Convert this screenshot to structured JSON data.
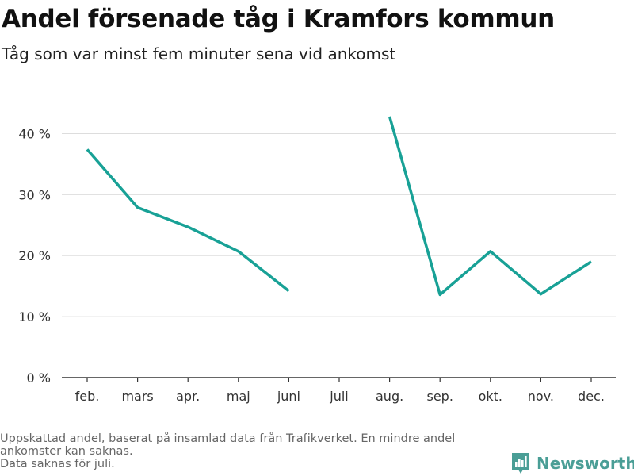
{
  "header": {
    "title": "Andel försenade tåg i Kramfors kommun",
    "subtitle": "Tåg som var minst fem minuter sena vid ankomst"
  },
  "footnote": {
    "lines": [
      "Uppskattad andel, baserat på insamlad data från Trafikverket. En mindre andel",
      "ankomster kan saknas.",
      "Data saknas för juli."
    ]
  },
  "brand": {
    "name": "Newsworthy",
    "logo_icon": "newsworthy-bar-chart-logo-icon",
    "color": "#4a9e96"
  },
  "chart_data": {
    "type": "line",
    "categories": [
      "feb.",
      "mars",
      "apr.",
      "maj",
      "juni",
      "juli",
      "aug.",
      "sep.",
      "okt.",
      "nov.",
      "dec."
    ],
    "series": [
      {
        "values": [
          37.4,
          27.9,
          24.7,
          20.7,
          14.2,
          null,
          42.8,
          13.6,
          20.7,
          13.7,
          19.0
        ]
      }
    ],
    "yticks": [
      0,
      10,
      20,
      30,
      40
    ],
    "ytick_labels": [
      "0 %",
      "10 %",
      "20 %",
      "30 %",
      "40 %"
    ],
    "ylim": [
      0,
      45
    ],
    "grid": true,
    "line_color": "#18a196"
  }
}
